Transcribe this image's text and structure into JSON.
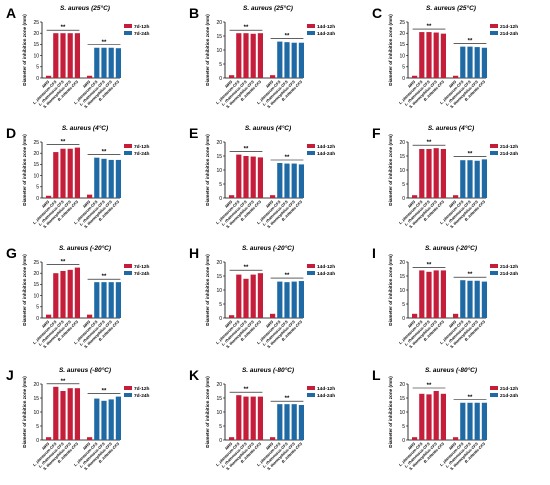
{
  "colors": {
    "red": "#c41e3a",
    "blue": "#1f6aa5",
    "mrs": "#c41e3a",
    "axis": "#000000"
  },
  "ylabel": "Diameter of inhibition zone (mm)",
  "categories_red": [
    "MRS",
    "L. plantarum-CFS",
    "L. rhamnosus-CFS",
    "S. thermophilus-CFS",
    "B. infantis-CFS"
  ],
  "categories_blue": [
    "MRS",
    "L. plantarum-CFS",
    "L. rhamnosus-CFS",
    "S. thermophilus-CFS",
    "B. infantis-CFS"
  ],
  "significance": "**",
  "chart_data": [
    {
      "letter": "A",
      "type": "bar",
      "title": "S. aureus (25°C)",
      "legend": [
        "7d-12h",
        "7d-24h"
      ],
      "ylim": [
        0,
        25
      ],
      "yticks": [
        0,
        5,
        10,
        15,
        20,
        25
      ],
      "red": [
        1.0,
        20,
        20,
        20,
        20
      ],
      "blue": [
        1.0,
        13.5,
        13.5,
        13.5,
        13.3
      ]
    },
    {
      "letter": "B",
      "type": "bar",
      "title": "S. aureus (25°C)",
      "legend": [
        "14d-12h",
        "14d-24h"
      ],
      "ylim": [
        0,
        20
      ],
      "yticks": [
        0,
        5,
        10,
        15,
        20
      ],
      "red": [
        1.0,
        16,
        16,
        15.8,
        16
      ],
      "blue": [
        1.0,
        13,
        12.8,
        12.6,
        12.6
      ]
    },
    {
      "letter": "C",
      "type": "bar",
      "title": "S. aureus (25°C)",
      "legend": [
        "21d-12h",
        "21d-24h"
      ],
      "ylim": [
        0,
        25
      ],
      "yticks": [
        0,
        5,
        10,
        15,
        20,
        25
      ],
      "red": [
        1.0,
        20.5,
        20.5,
        20.3,
        19.8
      ],
      "blue": [
        1.0,
        14,
        14,
        13.8,
        13.5
      ]
    },
    {
      "letter": "D",
      "type": "bar",
      "title": "S. aureus (4°C)",
      "legend": [
        "7d-12h",
        "7d-24h"
      ],
      "ylim": [
        0,
        25
      ],
      "yticks": [
        0,
        5,
        10,
        15,
        20,
        25
      ],
      "red": [
        1.0,
        20.5,
        22,
        22,
        22.5
      ],
      "blue": [
        1.5,
        18,
        17.5,
        17,
        17
      ]
    },
    {
      "letter": "E",
      "type": "bar",
      "title": "S. aureus (4°C)",
      "legend": [
        "14d-12h",
        "14d-24h"
      ],
      "ylim": [
        0,
        20
      ],
      "yticks": [
        0,
        5,
        10,
        15,
        20
      ],
      "red": [
        1.0,
        15.5,
        15,
        14.8,
        14.5
      ],
      "blue": [
        1.0,
        12.5,
        12.3,
        12.3,
        12
      ]
    },
    {
      "letter": "F",
      "type": "bar",
      "title": "S. aureus (4°C)",
      "legend": [
        "21d-12h",
        "21d-24h"
      ],
      "ylim": [
        0,
        20
      ],
      "yticks": [
        0,
        5,
        10,
        15,
        20
      ],
      "red": [
        1.0,
        17.5,
        17.5,
        17.8,
        17.5
      ],
      "blue": [
        1.0,
        13.5,
        13.5,
        13.3,
        13.8
      ]
    },
    {
      "letter": "G",
      "type": "bar",
      "title": "S. aureus (-20°C)",
      "legend": [
        "7d-12h",
        "7d-24h"
      ],
      "ylim": [
        0,
        25
      ],
      "yticks": [
        0,
        5,
        10,
        15,
        20,
        25
      ],
      "red": [
        1.5,
        20,
        21,
        21.5,
        22.5
      ],
      "blue": [
        1.5,
        16,
        16,
        16,
        16
      ]
    },
    {
      "letter": "H",
      "type": "bar",
      "title": "S. aureus (-20°C)",
      "legend": [
        "14d-12h",
        "14d-24h"
      ],
      "ylim": [
        0,
        20
      ],
      "yticks": [
        0,
        5,
        10,
        15,
        20
      ],
      "red": [
        1.0,
        15.5,
        14,
        15.5,
        16
      ],
      "blue": [
        1.5,
        13,
        12.8,
        13,
        13.2
      ]
    },
    {
      "letter": "I",
      "type": "bar",
      "title": "S. aureus (-20°C)",
      "legend": [
        "21d-12h",
        "21d-24h"
      ],
      "ylim": [
        0,
        20
      ],
      "yticks": [
        0,
        5,
        10,
        15,
        20
      ],
      "red": [
        1.5,
        17,
        16.5,
        17,
        17
      ],
      "blue": [
        1.5,
        13.5,
        13.3,
        13.3,
        13
      ]
    },
    {
      "letter": "J",
      "type": "bar",
      "title": "S. aureus (-80°C)",
      "legend": [
        "7d-12h",
        "7d-24h"
      ],
      "ylim": [
        0,
        20
      ],
      "yticks": [
        0,
        5,
        10,
        15,
        20
      ],
      "red": [
        1.0,
        19,
        17.5,
        18.5,
        18.5
      ],
      "blue": [
        1.0,
        14.8,
        14,
        14.5,
        15.5
      ]
    },
    {
      "letter": "K",
      "type": "bar",
      "title": "S. aureus (-80°C)",
      "legend": [
        "14d-12h",
        "14d-24h"
      ],
      "ylim": [
        0,
        20
      ],
      "yticks": [
        0,
        5,
        10,
        15,
        20
      ],
      "red": [
        1.0,
        16,
        15.5,
        15.5,
        15.5
      ],
      "blue": [
        1.0,
        12.8,
        12.8,
        12.8,
        12.5
      ]
    },
    {
      "letter": "L",
      "type": "bar",
      "title": "S. aureus (-80°C)",
      "legend": [
        "21d-12h",
        "21d-24h"
      ],
      "ylim": [
        0,
        20
      ],
      "yticks": [
        0,
        5,
        10,
        15,
        20
      ],
      "red": [
        1.0,
        16.5,
        16.3,
        17.5,
        16.5
      ],
      "blue": [
        1.0,
        13.3,
        13.3,
        13.3,
        13.3
      ]
    }
  ]
}
